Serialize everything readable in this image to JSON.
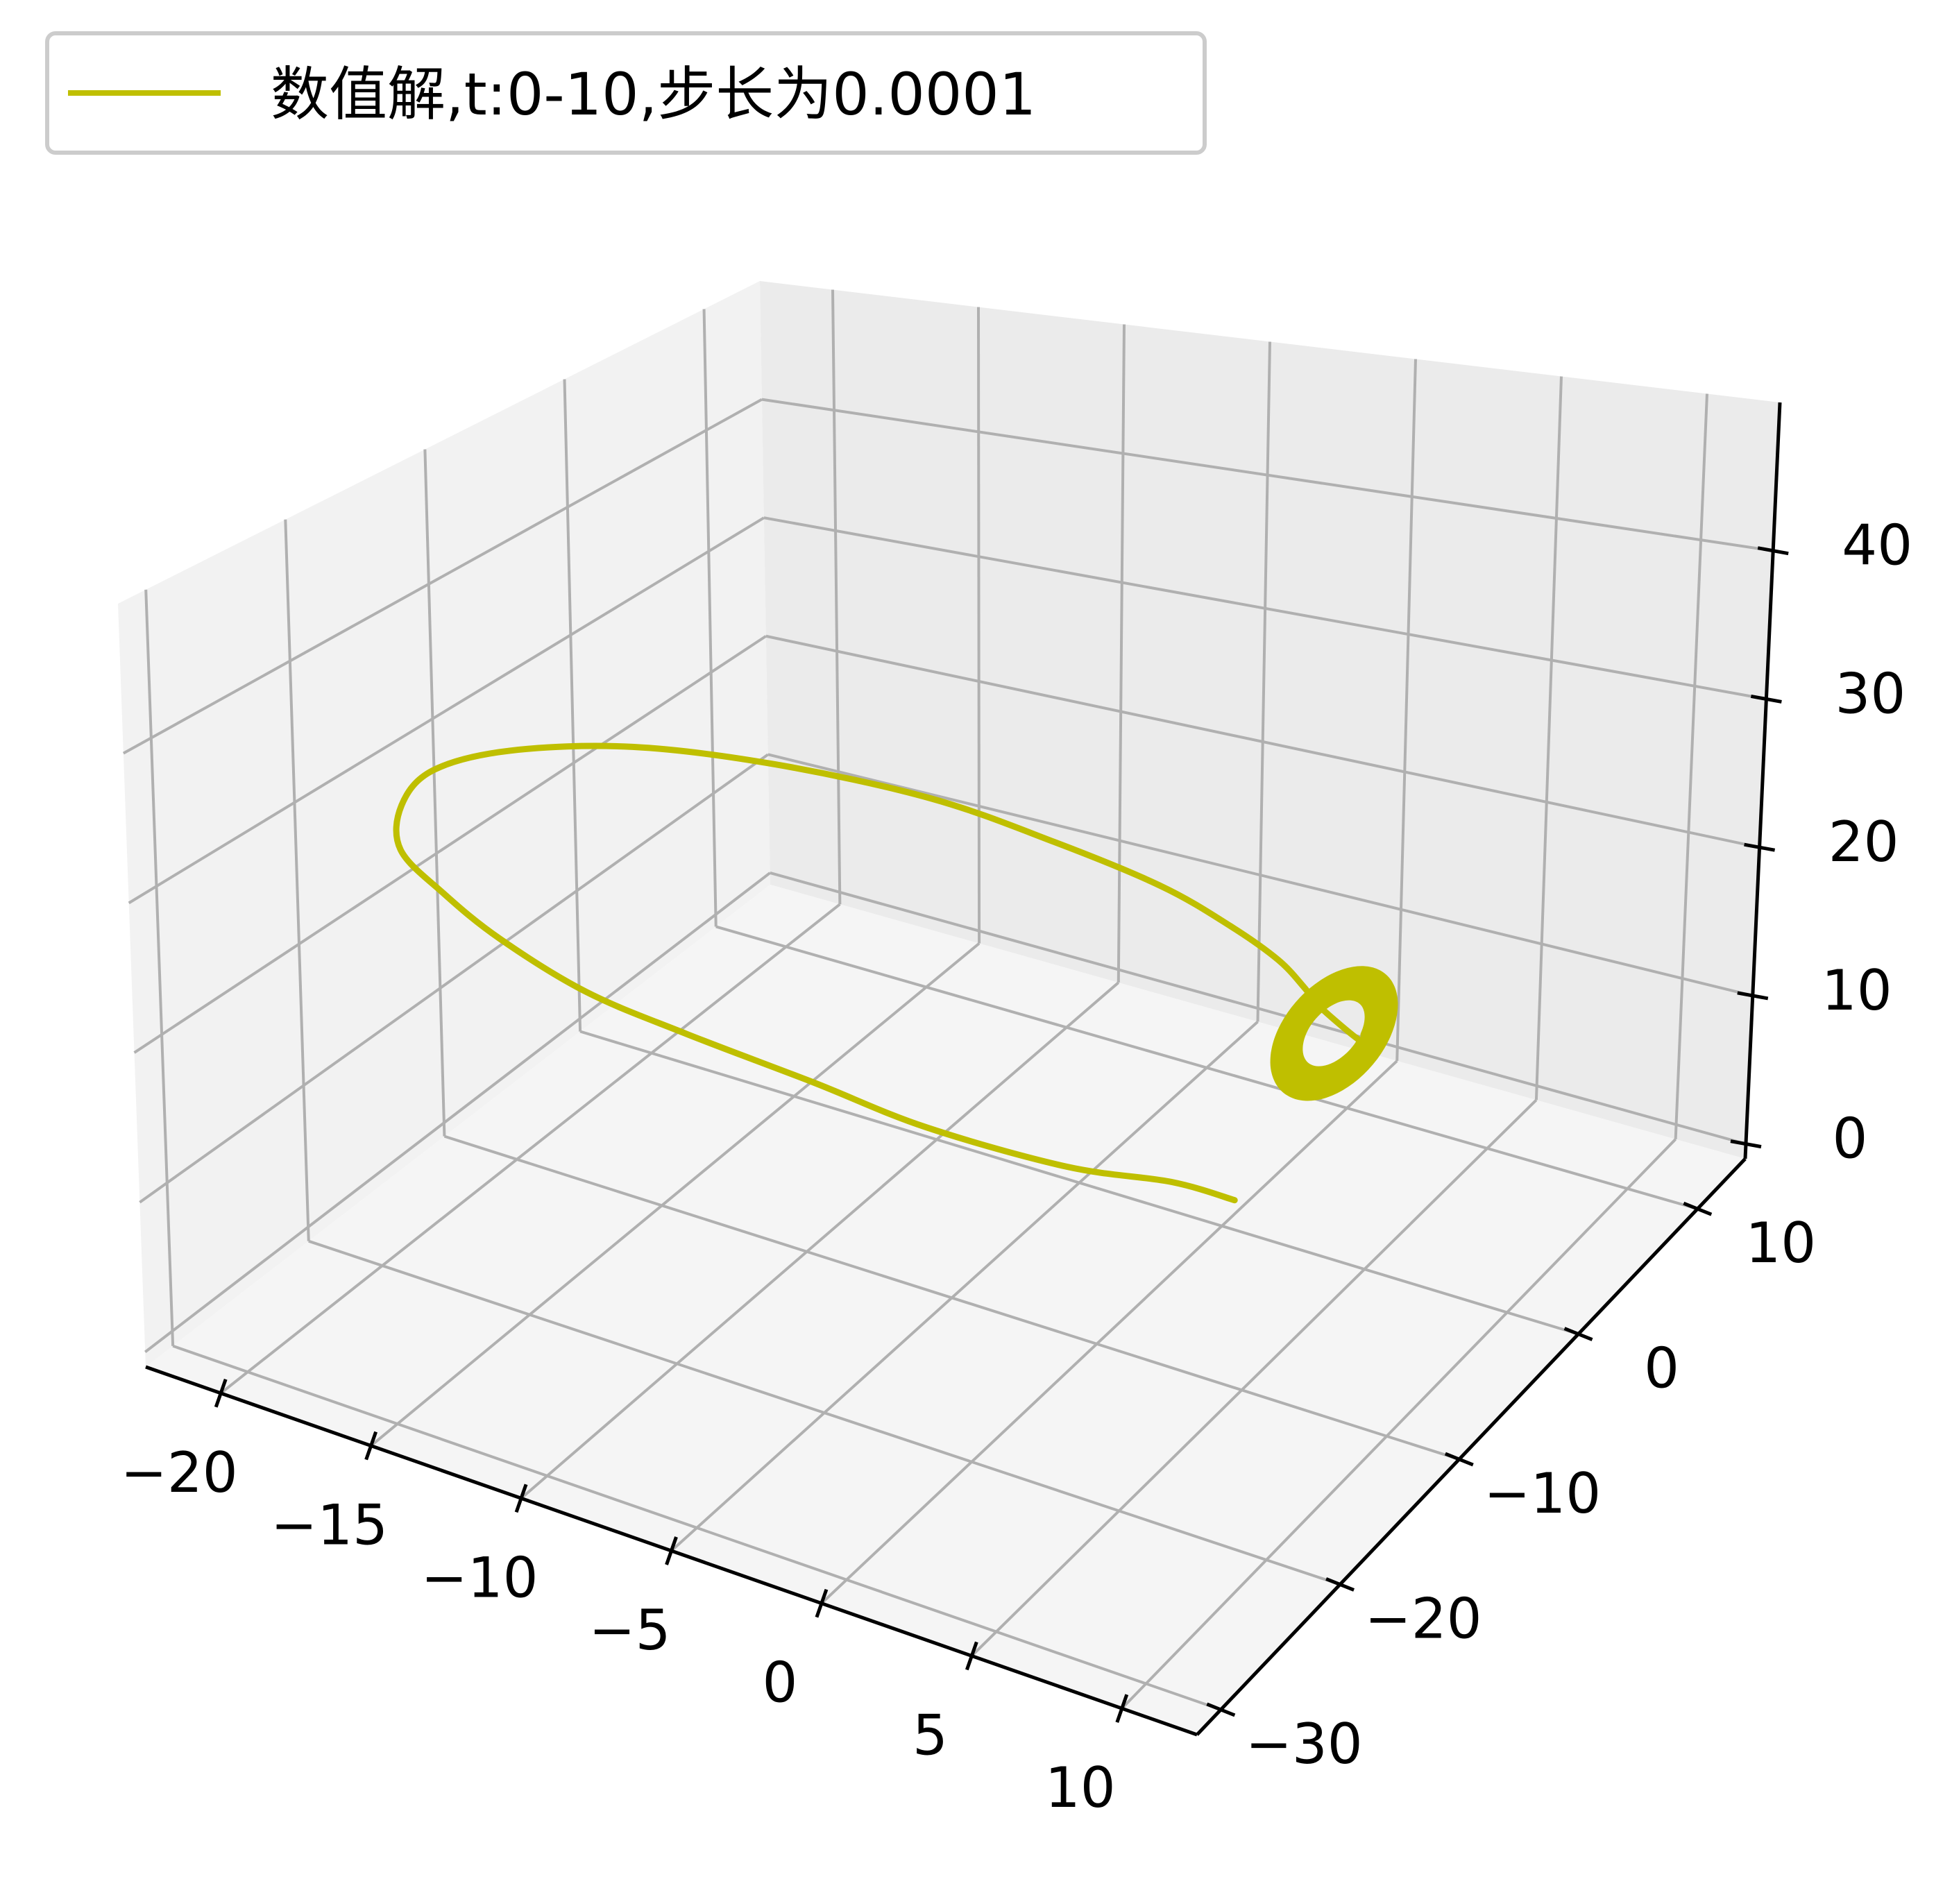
{
  "chart_data": {
    "type": "line",
    "projection": "3d",
    "legend": {
      "placement": "top-left",
      "entries": [
        "数值解,t:0-10,步长为0.0001"
      ]
    },
    "grid": true,
    "colors": {
      "series": "#bfbf00",
      "pane_left": "#f2f2f2",
      "pane_back": "#ebebeb",
      "pane_floor": "#f5f5f5",
      "grid": "#b0b0b0",
      "axis": "#000000"
    },
    "axes": {
      "x": {
        "ticks": [
          -20,
          -15,
          -10,
          -5,
          0,
          5,
          10
        ],
        "tick_labels": [
          "−20",
          "−15",
          "−10",
          "−5",
          "0",
          "5",
          "10"
        ],
        "lim": [
          -22.5,
          12.5
        ]
      },
      "y": {
        "ticks": [
          -30,
          -20,
          -10,
          0,
          10
        ],
        "tick_labels": [
          "−30",
          "−20",
          "−10",
          "0",
          "10"
        ],
        "lim": [
          -32,
          14
        ]
      },
      "z": {
        "ticks": [
          0,
          10,
          20,
          30,
          40
        ],
        "tick_labels": [
          "0",
          "10",
          "20",
          "30",
          "40"
        ],
        "lim": [
          -1,
          50
        ]
      }
    },
    "series": [
      {
        "name": "数值解,t:0-10,步长为0.0001",
        "trajectory": [
          [
            0.0,
            1.0,
            0.0
          ],
          [
            -2.0,
            0.5,
            0.5
          ],
          [
            -5.0,
            -1.0,
            1.0
          ],
          [
            -9.0,
            -3.0,
            3.0
          ],
          [
            -12.0,
            -5.0,
            6.0
          ],
          [
            -15.0,
            -8.0,
            10.0
          ],
          [
            -17.0,
            -11.0,
            14.0
          ],
          [
            -18.5,
            -14.0,
            19.0
          ],
          [
            -19.0,
            -17.0,
            24.0
          ],
          [
            -19.0,
            -20.0,
            29.0
          ],
          [
            -18.0,
            -22.0,
            34.0
          ],
          [
            -16.0,
            -24.0,
            39.0
          ],
          [
            -13.0,
            -25.0,
            43.0
          ],
          [
            -9.0,
            -25.0,
            46.0
          ],
          [
            -5.0,
            -23.5,
            46.5
          ],
          [
            -1.0,
            -21.0,
            45.0
          ],
          [
            2.0,
            -18.5,
            42.0
          ],
          [
            4.5,
            -16.0,
            38.5
          ],
          [
            6.0,
            -14.0,
            35.0
          ],
          [
            7.0,
            -12.5,
            32.0
          ],
          [
            7.5,
            -11.5,
            29.5
          ],
          [
            7.8,
            -11.0,
            28.0
          ]
        ],
        "spiral": {
          "center": [
            8.5,
            -11.5,
            27.0
          ],
          "turns": 30,
          "amplitude_x": 1.6,
          "amplitude_y": 3.0,
          "amplitude_z": 1.8
        }
      }
    ]
  }
}
